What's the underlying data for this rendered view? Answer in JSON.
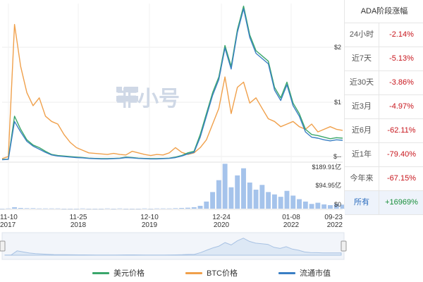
{
  "chart_data": {
    "type": "line",
    "x_ticks": [
      {
        "date": "11-10",
        "year": "2017"
      },
      {
        "date": "11-25",
        "year": "2018"
      },
      {
        "date": "12-10",
        "year": "2019"
      },
      {
        "date": "12-24",
        "year": "2020"
      },
      {
        "date": "01-08",
        "year": "2022"
      },
      {
        "date": "09-23",
        "year": "2022"
      }
    ],
    "price_axis_ticks": [
      "$2",
      "$1",
      "$--"
    ],
    "volume_axis_ticks": [
      "$189.91亿",
      "$94.95亿",
      "$0"
    ],
    "price_ylim": [
      0,
      3.0
    ],
    "volume_ylim": [
      0,
      189.91
    ],
    "series": [
      {
        "name": "美元价格",
        "color": "#3aa66b",
        "values": [
          0.025,
          0.03,
          0.85,
          0.6,
          0.4,
          0.3,
          0.25,
          0.18,
          0.12,
          0.1,
          0.09,
          0.08,
          0.07,
          0.06,
          0.05,
          0.045,
          0.04,
          0.04,
          0.045,
          0.05,
          0.07,
          0.06,
          0.05,
          0.045,
          0.04,
          0.04,
          0.045,
          0.05,
          0.07,
          0.1,
          0.15,
          0.18,
          0.5,
          0.9,
          1.3,
          1.6,
          2.2,
          1.8,
          2.5,
          2.95,
          2.4,
          2.1,
          2.0,
          1.9,
          1.4,
          1.2,
          1.5,
          1.1,
          0.9,
          0.6,
          0.5,
          0.48,
          0.45,
          0.42,
          0.44,
          0.43
        ]
      },
      {
        "name": "BTC价格",
        "color": "#f0a04b",
        "values": [
          0.04,
          0.08,
          2.6,
          1.8,
          1.3,
          1.05,
          1.2,
          0.85,
          0.75,
          0.7,
          0.5,
          0.35,
          0.25,
          0.2,
          0.15,
          0.14,
          0.13,
          0.12,
          0.14,
          0.12,
          0.11,
          0.18,
          0.15,
          0.12,
          0.1,
          0.12,
          0.11,
          0.15,
          0.25,
          0.16,
          0.12,
          0.15,
          0.25,
          0.4,
          0.7,
          1.0,
          1.6,
          0.9,
          1.4,
          1.5,
          1.1,
          1.2,
          1.0,
          0.8,
          0.75,
          0.65,
          0.7,
          0.75,
          0.65,
          0.6,
          0.7,
          0.55,
          0.6,
          0.65,
          0.6,
          0.58
        ]
      },
      {
        "name": "流通市值",
        "color": "#3a7fc4",
        "values": [
          0.02,
          0.025,
          0.75,
          0.55,
          0.37,
          0.28,
          0.22,
          0.16,
          0.11,
          0.09,
          0.08,
          0.07,
          0.06,
          0.055,
          0.045,
          0.04,
          0.035,
          0.035,
          0.04,
          0.045,
          0.06,
          0.055,
          0.045,
          0.04,
          0.035,
          0.035,
          0.04,
          0.045,
          0.06,
          0.09,
          0.13,
          0.16,
          0.45,
          0.85,
          1.25,
          1.55,
          2.15,
          1.75,
          2.45,
          2.9,
          2.35,
          2.05,
          1.95,
          1.85,
          1.35,
          1.15,
          1.45,
          1.05,
          0.85,
          0.55,
          0.45,
          0.43,
          0.4,
          0.38,
          0.4,
          0.39
        ]
      }
    ],
    "volume": [
      0,
      1,
      6,
      3,
      2,
      2,
      1,
      1,
      1,
      1,
      0,
      0,
      0,
      1,
      0,
      0,
      0,
      1,
      0,
      1,
      0,
      0,
      0,
      1,
      0,
      1,
      1,
      1,
      2,
      3,
      4,
      6,
      12,
      30,
      70,
      120,
      189,
      90,
      140,
      170,
      110,
      80,
      100,
      70,
      60,
      50,
      75,
      55,
      40,
      30,
      20,
      25,
      18,
      15,
      20,
      17
    ]
  },
  "watermark": "非小号",
  "panel": {
    "header": "ADA阶段涨幅",
    "rows": [
      {
        "label": "24小时",
        "value": "-2.14%"
      },
      {
        "label": "近7天",
        "value": "-5.13%"
      },
      {
        "label": "近30天",
        "value": "-3.86%"
      },
      {
        "label": "近3月",
        "value": "-4.97%"
      },
      {
        "label": "近6月",
        "value": "-62.11%"
      },
      {
        "label": "近1年",
        "value": "-79.40%"
      },
      {
        "label": "今年来",
        "value": "-67.15%"
      },
      {
        "label": "所有",
        "value": "+16969%"
      }
    ]
  },
  "legend": [
    {
      "label": "美元价格",
      "color": "#3aa66b"
    },
    {
      "label": "BTC价格",
      "color": "#f0a04b"
    },
    {
      "label": "流通市值",
      "color": "#3a7fc4"
    }
  ]
}
